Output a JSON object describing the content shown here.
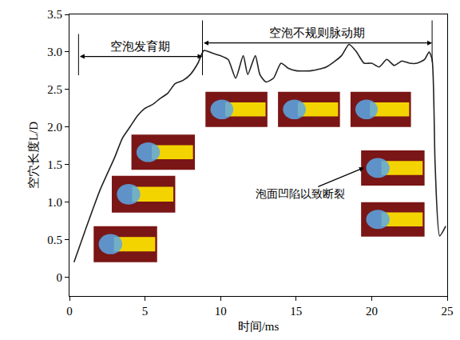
{
  "chart_data": {
    "type": "line",
    "x_label": "时间/ms",
    "y_label": "空穴长度L/D",
    "color": "#222222",
    "x": [
      0.3,
      1,
      2,
      3,
      3.5,
      4,
      4.5,
      5,
      5.5,
      6,
      6.5,
      7,
      7.5,
      8,
      8.5,
      8.9,
      9.5,
      10,
      10.5,
      11,
      11.5,
      11.8,
      12.3,
      12.6,
      13,
      13.5,
      14,
      14.5,
      15,
      16,
      17,
      18,
      18.5,
      19,
      19.5,
      20,
      20.5,
      21,
      21.5,
      22,
      22.5,
      23,
      23.5,
      23.8,
      24,
      24.2,
      24.5,
      24.9
    ],
    "values": [
      0.2,
      0.6,
      1.15,
      1.6,
      1.85,
      2.0,
      2.15,
      2.25,
      2.3,
      2.38,
      2.45,
      2.58,
      2.62,
      2.7,
      2.85,
      3.02,
      2.98,
      2.95,
      2.9,
      2.65,
      2.95,
      2.7,
      2.95,
      2.7,
      2.6,
      2.65,
      2.85,
      2.78,
      2.75,
      2.75,
      2.8,
      2.95,
      3.1,
      3.0,
      2.85,
      2.85,
      2.8,
      2.9,
      2.82,
      2.88,
      2.85,
      2.85,
      2.9,
      3.0,
      2.9,
      1.5,
      0.55,
      0.68
    ],
    "xlim": [
      0,
      25
    ],
    "xticks": [
      0,
      5,
      10,
      15,
      20,
      25
    ],
    "ylim": [
      -0.25,
      3.5
    ],
    "yticks": [
      0,
      0.5,
      {
        "value": 1,
        "label": "1.0"
      },
      1.5,
      {
        "value": 2,
        "label": "2.0"
      },
      2.5,
      {
        "value": 3,
        "label": "3.0"
      },
      3.5
    ],
    "grid": false,
    "periods": [
      {
        "label": "空泡发育期",
        "start": 0.6,
        "end": 8.8,
        "y": 2.94
      },
      {
        "label": "空泡不规则脉动期",
        "start": 8.8,
        "end": 24.0,
        "y": 3.12
      }
    ],
    "annotations": [
      {
        "text": "泡面凹陷以致断裂",
        "x": 15.3,
        "y": 1.11,
        "arrow_x": 19.5,
        "arrow_y": 1.46
      }
    ]
  }
}
